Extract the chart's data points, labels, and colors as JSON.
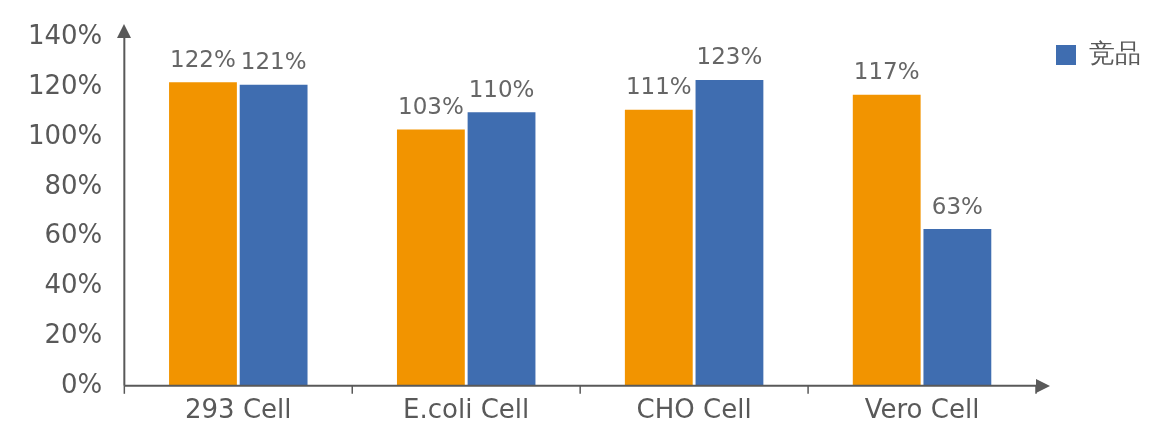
{
  "chart_data": {
    "type": "bar",
    "categories": [
      "293 Cell",
      "E.coli Cell",
      "CHO Cell",
      "Vero Cell"
    ],
    "series": [
      {
        "color": "#f29400",
        "values": [
          122,
          103,
          111,
          117
        ],
        "value_labels": [
          "122%",
          "103%",
          "111%",
          "117%"
        ]
      },
      {
        "name": "竞品",
        "color": "#3f6db0",
        "values": [
          121,
          110,
          123,
          63
        ],
        "value_labels": [
          "121%",
          "110%",
          "123%",
          "63%"
        ]
      }
    ],
    "ylim": [
      0,
      140
    ],
    "yticks": [
      {
        "value": 0,
        "label": "0%"
      },
      {
        "value": 20,
        "label": "20%"
      },
      {
        "value": 40,
        "label": "40%"
      },
      {
        "value": 60,
        "label": "60%"
      },
      {
        "value": 80,
        "label": "80%"
      },
      {
        "value": 100,
        "label": "100%"
      },
      {
        "value": 120,
        "label": "120%"
      },
      {
        "value": 140,
        "label": "140%"
      }
    ],
    "grid": false,
    "legend": "top right"
  }
}
